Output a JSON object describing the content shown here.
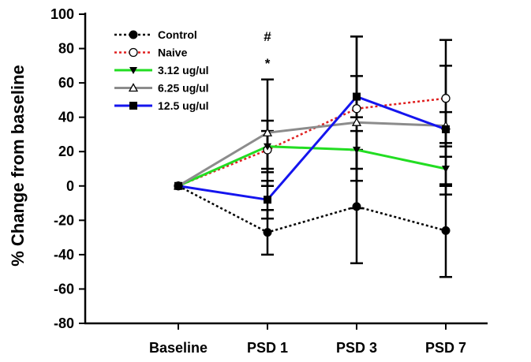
{
  "chart_data": {
    "type": "line",
    "title": "",
    "xlabel": "",
    "ylabel": "% Change from baseline",
    "ylim": [
      -80,
      100
    ],
    "yticks": [
      -80,
      -60,
      -40,
      -20,
      0,
      20,
      40,
      60,
      80,
      100
    ],
    "categories": [
      "Baseline",
      "PSD 1",
      "PSD 3",
      "PSD 7"
    ],
    "grid": false,
    "legend_position": "top-left",
    "series": [
      {
        "name": "Control",
        "color": "#000000",
        "dash": "dotted",
        "marker": "filled-circle",
        "values": [
          0,
          -27,
          -12,
          -26
        ],
        "errors": [
          null,
          13,
          33,
          27
        ]
      },
      {
        "name": "Naive",
        "color": "#e02020",
        "dash": "dotted",
        "marker": "open-circle",
        "values": [
          0,
          21,
          45,
          51
        ],
        "errors": [
          null,
          11,
          42,
          34
        ]
      },
      {
        "name": "3.12 ug/ul",
        "color": "#22dd22",
        "dash": "solid",
        "marker": "filled-triangle-down",
        "values": [
          0,
          23,
          21,
          10
        ],
        "errors": [
          null,
          15,
          11,
          15
        ]
      },
      {
        "name": "6.25 ug/ul",
        "color": "#8c8c8c",
        "dash": "solid",
        "marker": "open-triangle-up",
        "values": [
          0,
          31,
          37,
          35
        ],
        "errors": [
          null,
          31,
          50,
          35
        ]
      },
      {
        "name": "12.5 ug/ul",
        "color": "#1515ee",
        "dash": "solid",
        "marker": "filled-square",
        "values": [
          0,
          -8,
          52,
          33
        ],
        "errors": [
          null,
          11,
          12,
          10
        ]
      }
    ],
    "annotations": [
      {
        "text": "#",
        "category": "PSD 1"
      },
      {
        "text": "*",
        "category": "PSD 1"
      }
    ]
  }
}
